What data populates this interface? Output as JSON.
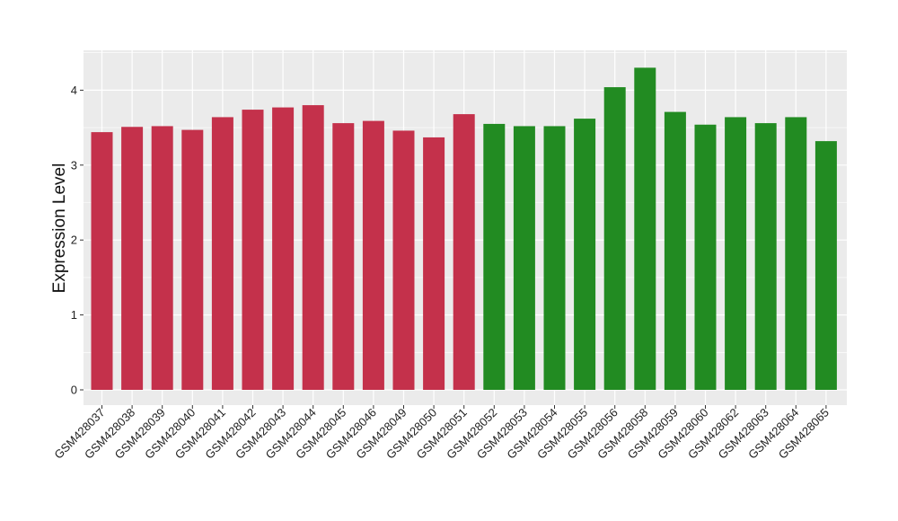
{
  "chart_data": {
    "type": "bar",
    "title": "",
    "xlabel": "",
    "ylabel": "Expression Level",
    "ylim": [
      0,
      4.5
    ],
    "yticks": [
      0,
      1,
      2,
      3,
      4
    ],
    "grid": true,
    "categories": [
      "GSM428037",
      "GSM428038",
      "GSM428039",
      "GSM428040",
      "GSM428041",
      "GSM428042",
      "GSM428043",
      "GSM428044",
      "GSM428045",
      "GSM428046",
      "GSM428049",
      "GSM428050",
      "GSM428051",
      "GSM428052",
      "GSM428053",
      "GSM428054",
      "GSM428055",
      "GSM428056",
      "GSM428058",
      "GSM428059",
      "GSM428060",
      "GSM428062",
      "GSM428063",
      "GSM428064",
      "GSM428065"
    ],
    "values": [
      3.44,
      3.51,
      3.52,
      3.47,
      3.64,
      3.74,
      3.77,
      3.8,
      3.56,
      3.59,
      3.46,
      3.37,
      3.68,
      3.55,
      3.52,
      3.52,
      3.62,
      4.04,
      4.3,
      3.71,
      3.54,
      3.64,
      3.56,
      3.64,
      3.32
    ],
    "bar_colors": [
      "#C4314B",
      "#C4314B",
      "#C4314B",
      "#C4314B",
      "#C4314B",
      "#C4314B",
      "#C4314B",
      "#C4314B",
      "#C4314B",
      "#C4314B",
      "#C4314B",
      "#C4314B",
      "#C4314B",
      "#228B22",
      "#228B22",
      "#228B22",
      "#228B22",
      "#228B22",
      "#228B22",
      "#228B22",
      "#228B22",
      "#228B22",
      "#228B22",
      "#228B22",
      "#228B22"
    ],
    "panel_background": "#EBEBEB",
    "gridline_color": "#FFFFFF"
  }
}
